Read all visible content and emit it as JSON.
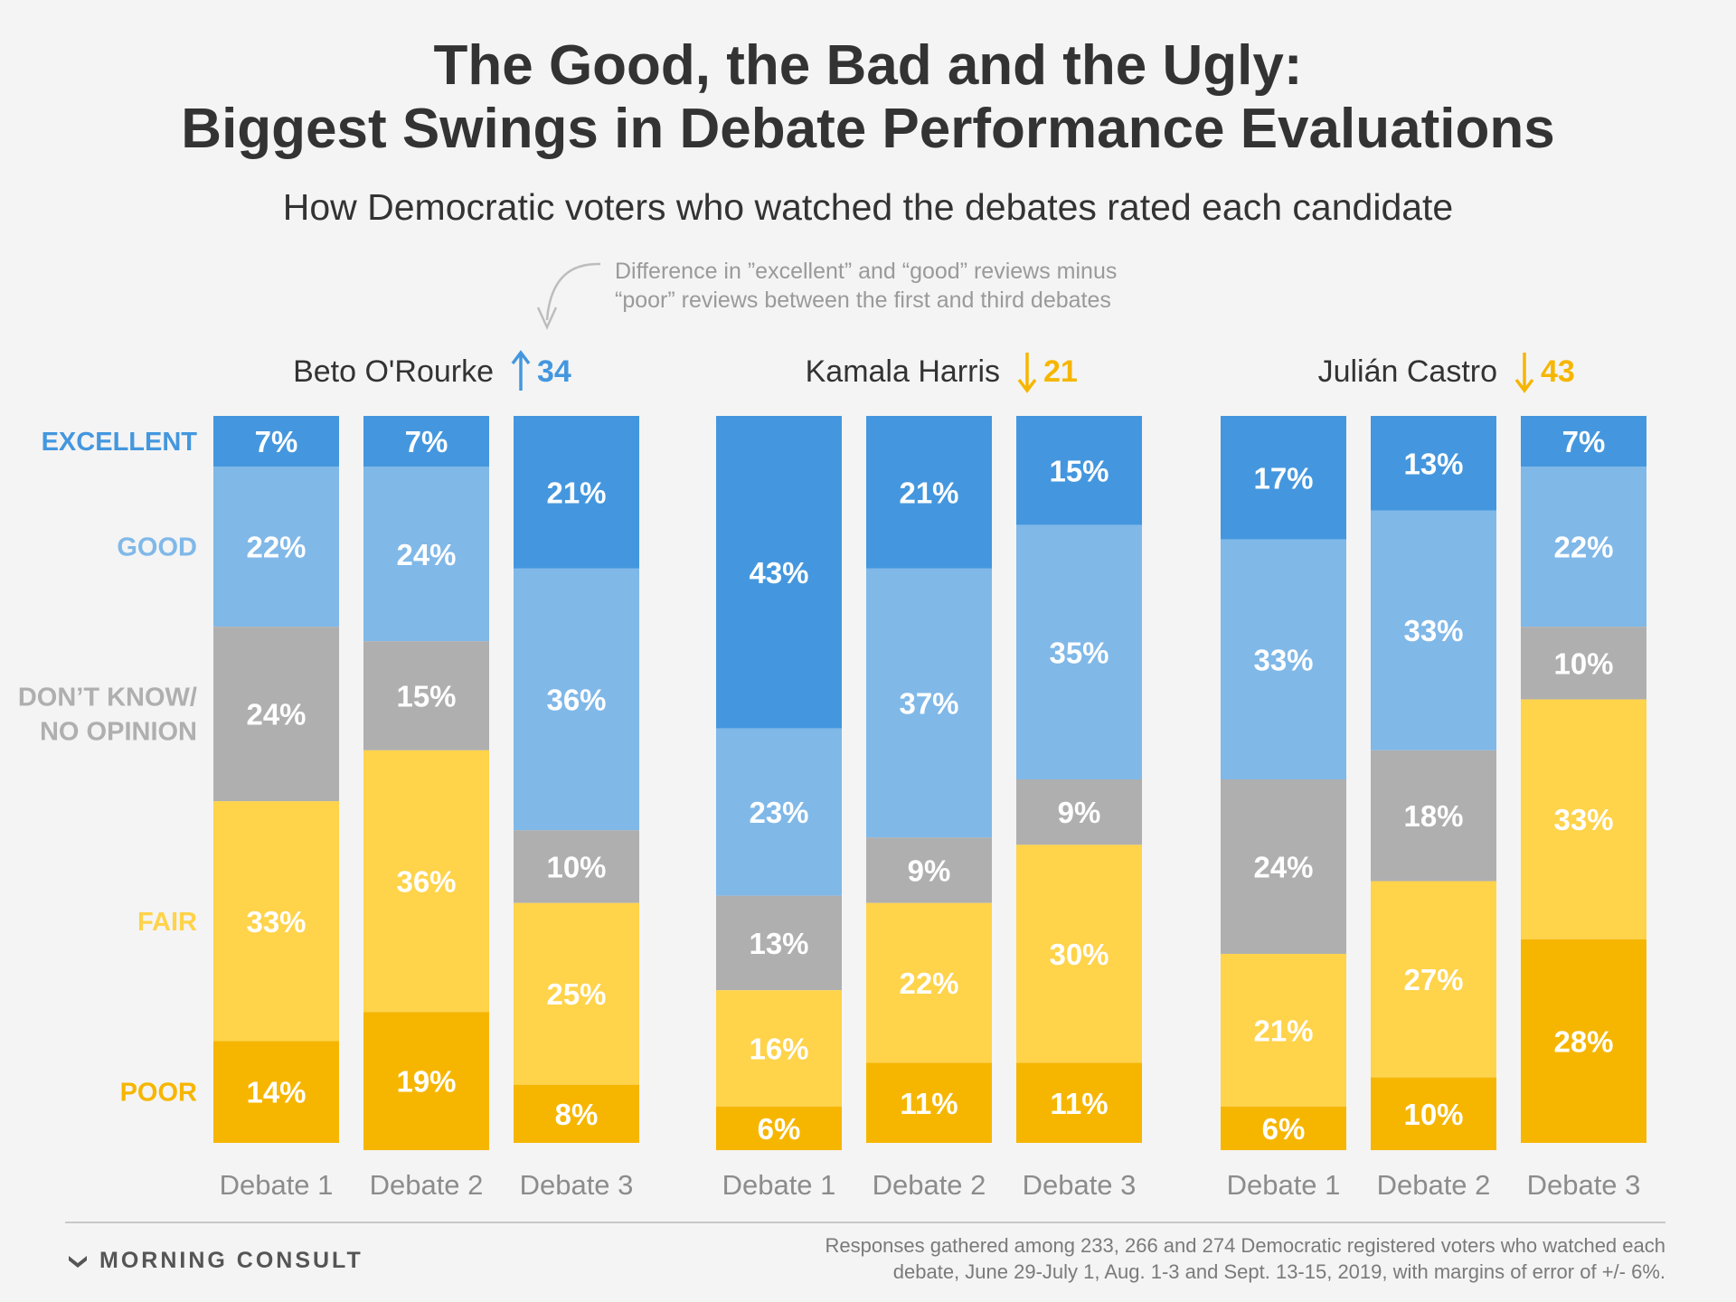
{
  "header": {
    "title_line1": "The Good, the Bad and the Ugly:",
    "title_line2": "Biggest Swings in Debate Performance Evaluations",
    "subtitle": "How Democratic voters who watched the debates rated each candidate"
  },
  "annotation": {
    "line1": "Difference in ”excellent” and “good” reviews minus",
    "line2": "“poor” reviews between the first and third debates"
  },
  "icons": {
    "up_arrow": "up-arrow-icon",
    "down_arrow": "down-arrow-icon",
    "logo": "morning-consult-logo-icon"
  },
  "colors": {
    "excellent": "#4497de",
    "good": "#80b8e8",
    "dont_know": "#afafaf",
    "fair": "#ffd34a",
    "poor": "#f6b600",
    "up": "#4497de",
    "down": "#f6b600"
  },
  "chart_data": {
    "type": "bar",
    "stacked": true,
    "categories": [
      "Debate 1",
      "Debate 2",
      "Debate 3"
    ],
    "row_labels": [
      {
        "key": "excellent",
        "lines": [
          "EXCELLENT"
        ]
      },
      {
        "key": "good",
        "lines": [
          "GOOD"
        ]
      },
      {
        "key": "dont_know",
        "lines": [
          "DON’T KNOW/",
          "NO OPINION"
        ]
      },
      {
        "key": "fair",
        "lines": [
          "FAIR"
        ]
      },
      {
        "key": "poor",
        "lines": [
          "POOR"
        ]
      }
    ],
    "groups": [
      {
        "candidate": "Beto O'Rourke",
        "direction": "up",
        "change": "34",
        "series": [
          {
            "name": "EXCELLENT",
            "key": "excellent",
            "values": [
              7,
              7,
              21
            ]
          },
          {
            "name": "GOOD",
            "key": "good",
            "values": [
              22,
              24,
              36
            ]
          },
          {
            "name": "DON’T KNOW/NO OPINION",
            "key": "dont_know",
            "values": [
              24,
              15,
              10
            ]
          },
          {
            "name": "FAIR",
            "key": "fair",
            "values": [
              33,
              36,
              25
            ]
          },
          {
            "name": "POOR",
            "key": "poor",
            "values": [
              14,
              19,
              8
            ]
          }
        ]
      },
      {
        "candidate": "Kamala Harris",
        "direction": "down",
        "change": "21",
        "series": [
          {
            "name": "EXCELLENT",
            "key": "excellent",
            "values": [
              43,
              21,
              15
            ]
          },
          {
            "name": "GOOD",
            "key": "good",
            "values": [
              23,
              37,
              35
            ]
          },
          {
            "name": "DON’T KNOW/NO OPINION",
            "key": "dont_know",
            "values": [
              13,
              9,
              9
            ]
          },
          {
            "name": "FAIR",
            "key": "fair",
            "values": [
              16,
              22,
              30
            ]
          },
          {
            "name": "POOR",
            "key": "poor",
            "values": [
              6,
              11,
              11
            ]
          }
        ]
      },
      {
        "candidate": "Julián Castro",
        "direction": "down",
        "change": "43",
        "series": [
          {
            "name": "EXCELLENT",
            "key": "excellent",
            "values": [
              17,
              13,
              7
            ]
          },
          {
            "name": "GOOD",
            "key": "good",
            "values": [
              33,
              33,
              22
            ]
          },
          {
            "name": "DON’T KNOW/NO OPINION",
            "key": "dont_know",
            "values": [
              24,
              18,
              10
            ]
          },
          {
            "name": "FAIR",
            "key": "fair",
            "values": [
              21,
              27,
              33
            ]
          },
          {
            "name": "POOR",
            "key": "poor",
            "values": [
              6,
              10,
              28
            ]
          }
        ]
      }
    ],
    "value_suffix": "%",
    "grid": false,
    "legend": "left"
  },
  "footer": {
    "logo_text": "MORNING CONSULT",
    "note_line1": "Responses gathered among 233, 266 and 274 Democratic registered voters who watched each",
    "note_line2": "debate, June 29-July 1, Aug. 1-3 and Sept. 13-15, 2019, with margins of error of +/- 6%."
  }
}
